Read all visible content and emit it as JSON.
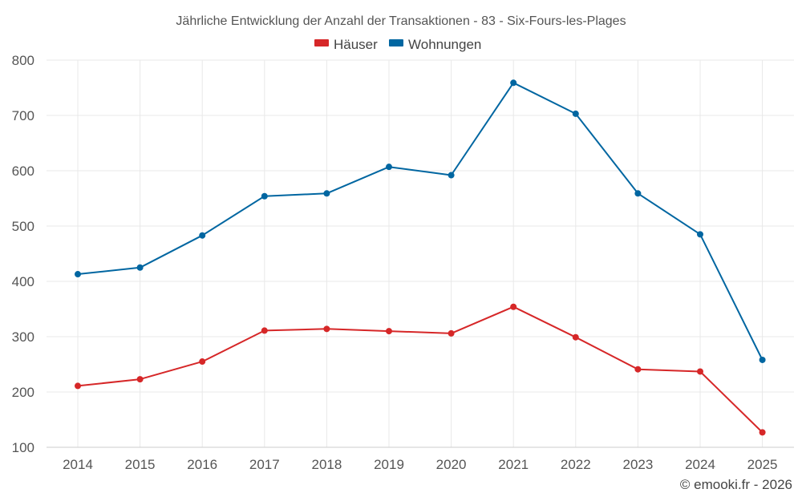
{
  "chart_data": {
    "type": "line",
    "title": "Jährliche Entwicklung der Anzahl der Transaktionen - 83 - Six-Fours-les-Plages",
    "xlabel": "",
    "ylabel": "",
    "categories": [
      "2014",
      "2015",
      "2016",
      "2017",
      "2018",
      "2019",
      "2020",
      "2021",
      "2022",
      "2023",
      "2024",
      "2025"
    ],
    "ylim": [
      100,
      800
    ],
    "yticks": [
      100,
      200,
      300,
      400,
      500,
      600,
      700,
      800
    ],
    "grid": true,
    "legend_position": "top-center",
    "series": [
      {
        "name": "Häuser",
        "color": "#d62728",
        "values": [
          211,
          223,
          255,
          311,
          314,
          310,
          306,
          354,
          299,
          241,
          237,
          127
        ]
      },
      {
        "name": "Wohnungen",
        "color": "#0066a1",
        "values": [
          413,
          425,
          483,
          554,
          559,
          607,
          592,
          759,
          703,
          559,
          485,
          258
        ]
      }
    ]
  },
  "credit": "© emooki.fr - 2026"
}
